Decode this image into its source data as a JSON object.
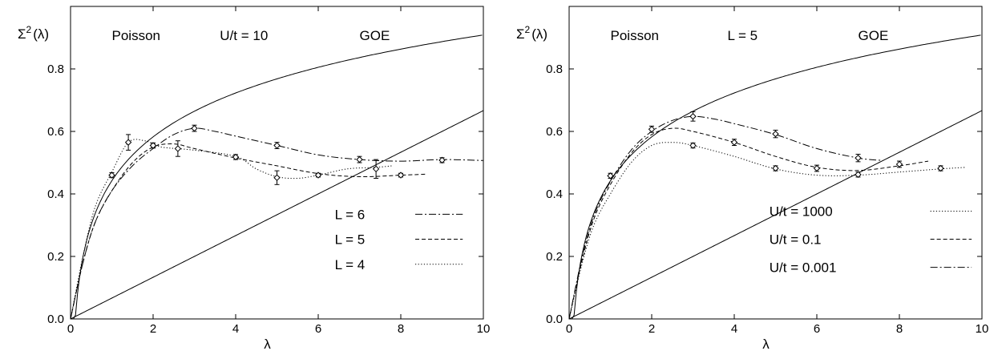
{
  "chart_data": [
    {
      "type": "line",
      "xlabel": "λ",
      "ylabel": "Σ²(λ)",
      "ylabel_main": "Σ",
      "ylabel_sup": "2",
      "ylabel_arg": "(λ)",
      "xlim": [
        0,
        10
      ],
      "ylim": [
        0,
        1.0
      ],
      "xticks": [
        0,
        2,
        4,
        6,
        8,
        10
      ],
      "yticks": [
        0.0,
        0.2,
        0.4,
        0.6,
        0.8
      ],
      "ytick_labels": [
        "0.0",
        "0.2",
        "0.4",
        "0.6",
        "0.8"
      ],
      "annotations": {
        "poisson": "Poisson",
        "param": "U/t = 10",
        "goe": "GOE"
      },
      "legend_position": "lower-right",
      "reference_curves": [
        "poisson",
        "goe"
      ],
      "series": [
        {
          "name": "L = 6",
          "style": "dashdot",
          "curve": [
            [
              0,
              0
            ],
            [
              0.3,
              0.18
            ],
            [
              0.6,
              0.31
            ],
            [
              1,
              0.41
            ],
            [
              1.5,
              0.49
            ],
            [
              2,
              0.545
            ],
            [
              2.5,
              0.59
            ],
            [
              3,
              0.61
            ],
            [
              3.5,
              0.6
            ],
            [
              4,
              0.585
            ],
            [
              5,
              0.555
            ],
            [
              6,
              0.525
            ],
            [
              7,
              0.51
            ],
            [
              8,
              0.505
            ],
            [
              9,
              0.51
            ],
            [
              10,
              0.507
            ]
          ],
          "points": [
            {
              "x": 2,
              "y": 0.555,
              "err": 0.008
            },
            {
              "x": 3,
              "y": 0.61,
              "err": 0.01
            },
            {
              "x": 5,
              "y": 0.555,
              "err": 0.01
            },
            {
              "x": 7,
              "y": 0.51,
              "err": 0.01
            },
            {
              "x": 9,
              "y": 0.508,
              "err": 0.008
            }
          ]
        },
        {
          "name": "L = 5",
          "style": "dashed",
          "curve": [
            [
              0,
              0
            ],
            [
              0.3,
              0.18
            ],
            [
              0.6,
              0.31
            ],
            [
              1,
              0.41
            ],
            [
              1.5,
              0.5
            ],
            [
              2,
              0.55
            ],
            [
              2.5,
              0.56
            ],
            [
              3,
              0.545
            ],
            [
              4,
              0.515
            ],
            [
              5,
              0.49
            ],
            [
              6,
              0.465
            ],
            [
              7,
              0.455
            ],
            [
              8,
              0.46
            ],
            [
              8.6,
              0.463
            ]
          ],
          "points": [
            {
              "x": 1,
              "y": 0.46,
              "err": 0.008
            },
            {
              "x": 2,
              "y": 0.555,
              "err": 0.008
            },
            {
              "x": 2.6,
              "y": 0.545,
              "err": 0.025
            },
            {
              "x": 4,
              "y": 0.518,
              "err": 0.008
            },
            {
              "x": 6,
              "y": 0.46,
              "err": 0.006
            },
            {
              "x": 8,
              "y": 0.46,
              "err": 0.006
            }
          ]
        },
        {
          "name": "L = 4",
          "style": "dotted",
          "curve": [
            [
              0,
              0
            ],
            [
              0.3,
              0.2
            ],
            [
              0.6,
              0.36
            ],
            [
              1,
              0.47
            ],
            [
              1.4,
              0.565
            ],
            [
              1.8,
              0.57
            ],
            [
              2.2,
              0.55
            ],
            [
              3,
              0.54
            ],
            [
              4,
              0.52
            ],
            [
              4.5,
              0.48
            ],
            [
              5,
              0.455
            ],
            [
              5.5,
              0.45
            ],
            [
              6,
              0.46
            ],
            [
              6.7,
              0.48
            ],
            [
              7.4,
              0.485
            ],
            [
              7.8,
              0.49
            ]
          ],
          "points": [
            {
              "x": 1.4,
              "y": 0.565,
              "err": 0.025
            },
            {
              "x": 5,
              "y": 0.452,
              "err": 0.022
            },
            {
              "x": 7.4,
              "y": 0.48,
              "err": 0.03
            }
          ]
        }
      ]
    },
    {
      "type": "line",
      "xlabel": "λ",
      "ylabel": "Σ²(λ)",
      "ylabel_main": "Σ",
      "ylabel_sup": "2",
      "ylabel_arg": "(λ)",
      "xlim": [
        0,
        10
      ],
      "ylim": [
        0,
        1.0
      ],
      "xticks": [
        0,
        2,
        4,
        6,
        8,
        10
      ],
      "yticks": [
        0.0,
        0.2,
        0.4,
        0.6,
        0.8
      ],
      "ytick_labels": [
        "0.0",
        "0.2",
        "0.4",
        "0.6",
        "0.8"
      ],
      "annotations": {
        "poisson": "Poisson",
        "param": "L = 5",
        "goe": "GOE"
      },
      "legend_position": "lower-right",
      "reference_curves": [
        "poisson",
        "goe"
      ],
      "series": [
        {
          "name": "U/t = 1000",
          "style": "dotted",
          "curve": [
            [
              0,
              0
            ],
            [
              0.3,
              0.17
            ],
            [
              0.6,
              0.3
            ],
            [
              1,
              0.4
            ],
            [
              1.5,
              0.5
            ],
            [
              2,
              0.555
            ],
            [
              2.5,
              0.565
            ],
            [
              3,
              0.555
            ],
            [
              4,
              0.52
            ],
            [
              5,
              0.48
            ],
            [
              6,
              0.46
            ],
            [
              7,
              0.46
            ],
            [
              8,
              0.47
            ],
            [
              9,
              0.48
            ],
            [
              9.6,
              0.485
            ]
          ],
          "points": [
            {
              "x": 1,
              "y": 0.458,
              "err": 0.008
            },
            {
              "x": 3,
              "y": 0.555,
              "err": 0.008
            },
            {
              "x": 5,
              "y": 0.482,
              "err": 0.008
            },
            {
              "x": 6,
              "y": 0.482,
              "err": 0.01
            },
            {
              "x": 7,
              "y": 0.462,
              "err": 0.008
            },
            {
              "x": 9,
              "y": 0.482,
              "err": 0.008
            }
          ]
        },
        {
          "name": "U/t = 0.1",
          "style": "dashed",
          "curve": [
            [
              0,
              0
            ],
            [
              0.3,
              0.18
            ],
            [
              0.6,
              0.32
            ],
            [
              1,
              0.43
            ],
            [
              1.5,
              0.53
            ],
            [
              2,
              0.59
            ],
            [
              2.5,
              0.61
            ],
            [
              3,
              0.6
            ],
            [
              4,
              0.565
            ],
            [
              5,
              0.52
            ],
            [
              6,
              0.485
            ],
            [
              7,
              0.475
            ],
            [
              8,
              0.49
            ],
            [
              8.7,
              0.505
            ]
          ],
          "points": [
            {
              "x": 2,
              "y": 0.607,
              "err": 0.01
            },
            {
              "x": 4,
              "y": 0.565,
              "err": 0.01
            },
            {
              "x": 8,
              "y": 0.495,
              "err": 0.01
            }
          ]
        },
        {
          "name": "U/t = 0.001",
          "style": "dashdot",
          "curve": [
            [
              0,
              0
            ],
            [
              0.3,
              0.19
            ],
            [
              0.6,
              0.33
            ],
            [
              1,
              0.44
            ],
            [
              1.5,
              0.54
            ],
            [
              2,
              0.6
            ],
            [
              2.5,
              0.635
            ],
            [
              3,
              0.648
            ],
            [
              3.5,
              0.64
            ],
            [
              4,
              0.625
            ],
            [
              5,
              0.59
            ],
            [
              6,
              0.545
            ],
            [
              7,
              0.515
            ],
            [
              7.6,
              0.507
            ]
          ],
          "points": [
            {
              "x": 3,
              "y": 0.648,
              "err": 0.015
            },
            {
              "x": 5,
              "y": 0.592,
              "err": 0.012
            },
            {
              "x": 7,
              "y": 0.515,
              "err": 0.012
            }
          ]
        }
      ]
    }
  ]
}
